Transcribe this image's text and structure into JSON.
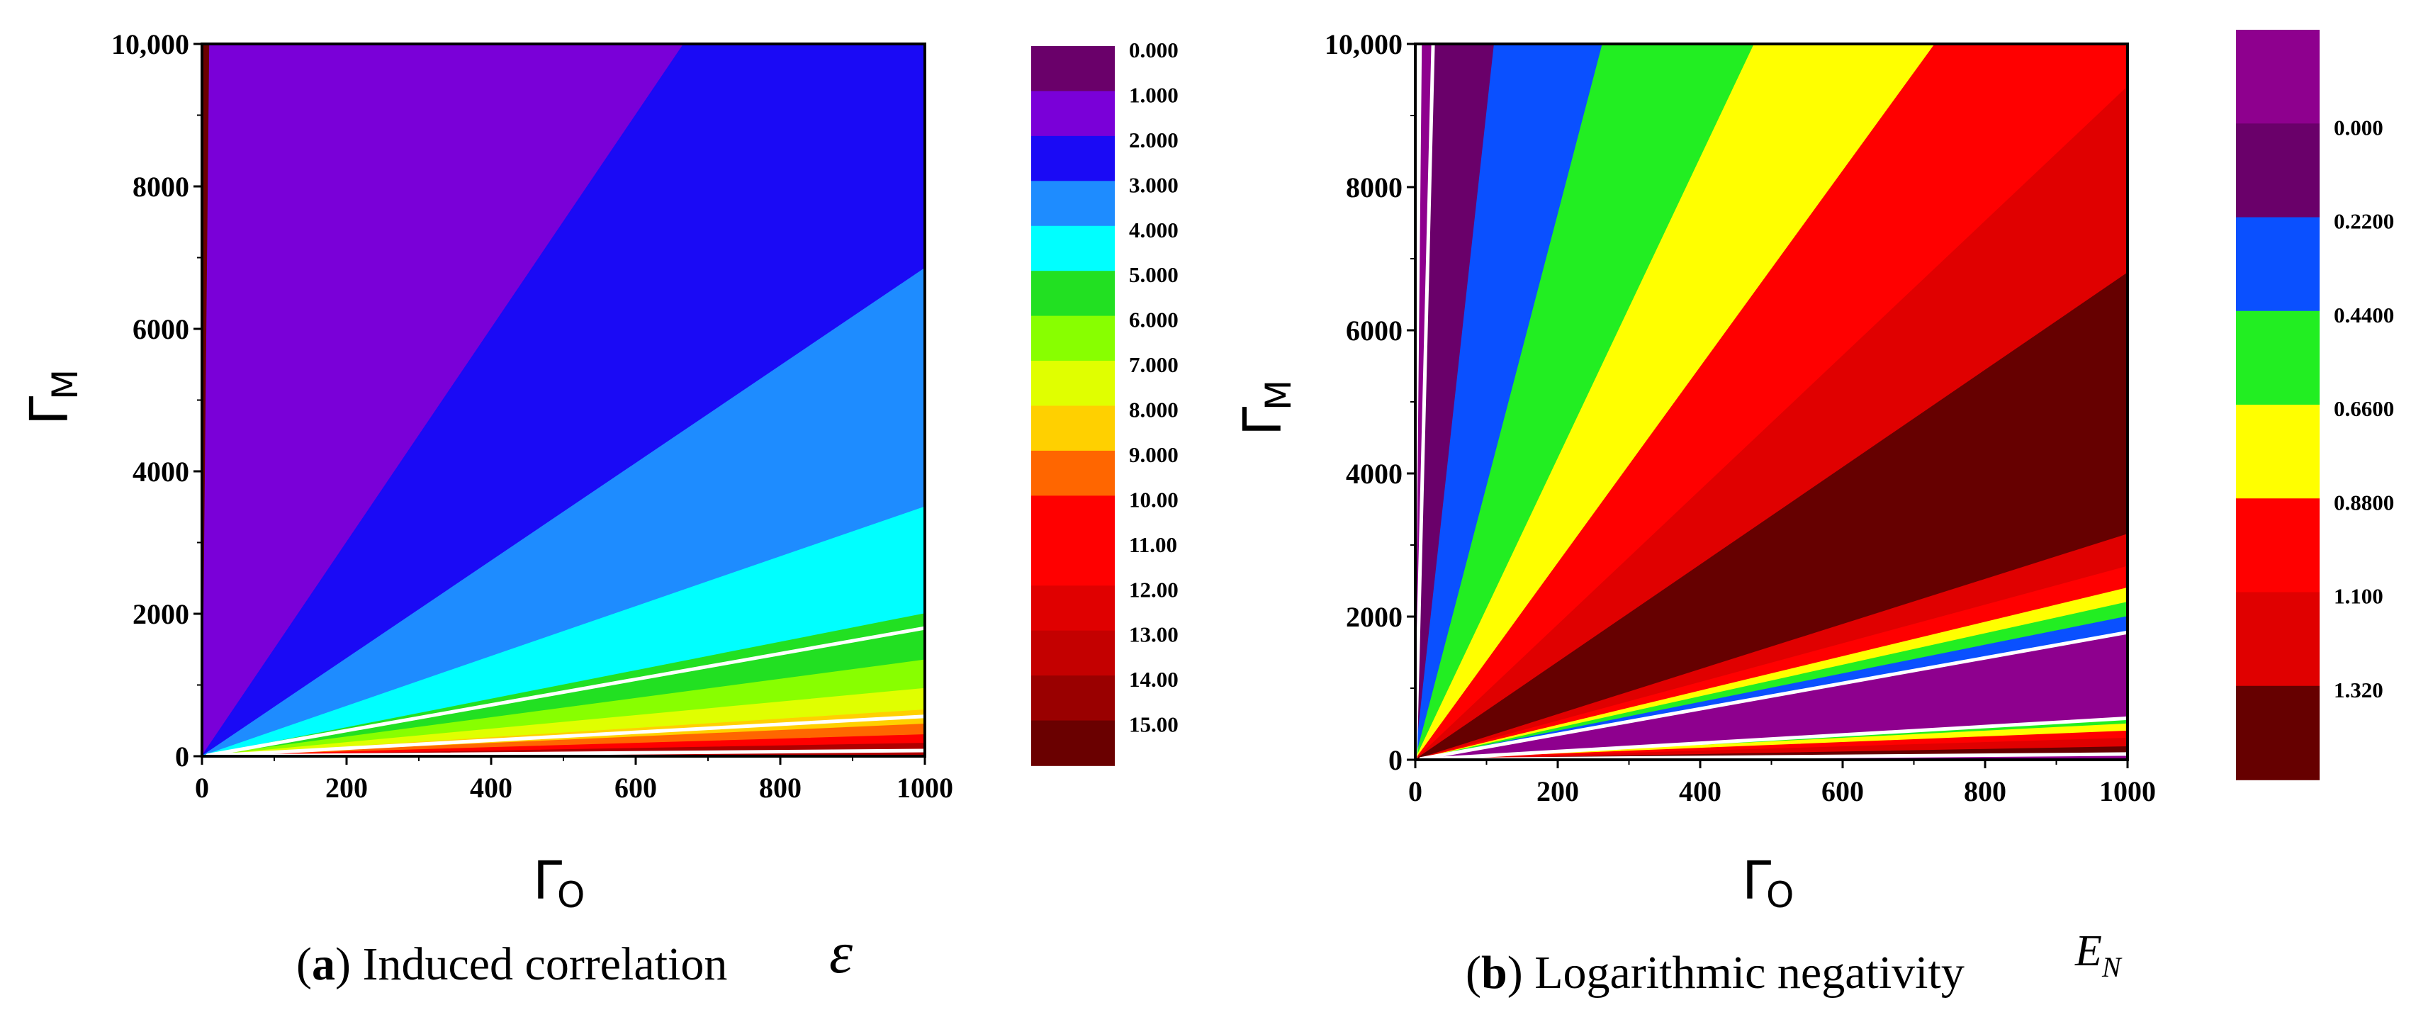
{
  "chart_data": [
    {
      "id": "a",
      "type": "heatmap",
      "subtype": "filled-contour",
      "caption_label": "a",
      "caption_text": "Induced correlation",
      "symbol": "ε",
      "xlabel": "Γ",
      "xlabel_sub": "O",
      "ylabel": "Γ",
      "ylabel_sub": "M",
      "xlim": [
        0,
        1000
      ],
      "ylim": [
        0,
        10000
      ],
      "x_ticks": [
        "0",
        "200",
        "400",
        "600",
        "800",
        "1000"
      ],
      "y_ticks": [
        "0",
        "2000",
        "4000",
        "6000",
        "8000",
        "10,000"
      ],
      "x_tick_values": [
        0,
        200,
        400,
        600,
        800,
        1000
      ],
      "y_tick_values": [
        0,
        2000,
        4000,
        6000,
        8000,
        10000
      ],
      "contour_ratio_boundaries": [
        1.8,
        0.56,
        0.08
      ],
      "contour_ratio_fill_order": [
        "#6a006a",
        "#7a00d8",
        "#6a006a"
      ],
      "wedges": [
        {
          "ratio_at_top": 1000,
          "ratio_next": 15.0,
          "color": "#7a00d8"
        },
        {
          "ratio_at_top": 15.0,
          "ratio_next": 6.85,
          "color": "#1a0af5"
        },
        {
          "ratio_at_top": 6.85,
          "ratio_next": 3.5,
          "color": "#1e8cff"
        },
        {
          "ratio_at_top": 3.5,
          "ratio_next": 2.0,
          "color": "#00ffff"
        },
        {
          "ratio_at_top": 2.0,
          "ratio_next": 1.35,
          "color": "#22e022"
        },
        {
          "ratio_at_top": 1.35,
          "ratio_next": 0.95,
          "color": "#88ff00"
        },
        {
          "ratio_at_top": 0.95,
          "ratio_next": 0.65,
          "color": "#e0ff00"
        },
        {
          "ratio_at_top": 0.65,
          "ratio_next": 0.45,
          "color": "#ffd000"
        },
        {
          "ratio_at_top": 0.45,
          "ratio_next": 0.3,
          "color": "#ff6600"
        },
        {
          "ratio_at_top": 0.3,
          "ratio_next": 0.18,
          "color": "#ff0000"
        },
        {
          "ratio_at_top": 0.18,
          "ratio_next": 0.0,
          "color": "#b00000"
        }
      ],
      "white_lines": [
        1.8,
        0.56,
        0.08
      ],
      "colorbar": {
        "labels": [
          "0.000",
          "1.000",
          "2.000",
          "3.000",
          "4.000",
          "5.000",
          "6.000",
          "7.000",
          "8.000",
          "9.000",
          "10.00",
          "11.00",
          "12.00",
          "13.00",
          "14.00",
          "15.00"
        ],
        "colors": [
          "#6a006a",
          "#7a00d8",
          "#1a0af5",
          "#1e8cff",
          "#00ffff",
          "#22e022",
          "#88ff00",
          "#e0ff00",
          "#ffd000",
          "#ff6600",
          "#ff0000",
          "#ff0000",
          "#e00000",
          "#c40000",
          "#9a0000",
          "#6a0000"
        ]
      }
    },
    {
      "id": "b",
      "type": "heatmap",
      "subtype": "filled-contour",
      "caption_label": "b",
      "caption_text": "Logarithmic negativity",
      "symbol": "E",
      "symbol_sub": "N",
      "xlabel": "Γ",
      "xlabel_sub": "O",
      "ylabel": "Γ",
      "ylabel_sub": "M",
      "xlim": [
        0,
        1000
      ],
      "ylim": [
        0,
        10000
      ],
      "x_ticks": [
        "0",
        "200",
        "400",
        "600",
        "800",
        "1000"
      ],
      "y_ticks": [
        "0",
        "2000",
        "4000",
        "6000",
        "8000",
        "10,000"
      ],
      "x_tick_values": [
        0,
        200,
        400,
        600,
        800,
        1000
      ],
      "y_tick_values": [
        0,
        2000,
        4000,
        6000,
        8000,
        10000
      ],
      "wedges": [
        {
          "ratio_at_top": 1000,
          "ratio_next": 400,
          "color": "#8e008e"
        },
        {
          "ratio_at_top": 400,
          "ratio_next": 90,
          "color": "#6a006a"
        },
        {
          "ratio_at_top": 90,
          "ratio_next": 38,
          "color": "#0a50ff"
        },
        {
          "ratio_at_top": 38,
          "ratio_next": 21,
          "color": "#22ee22"
        },
        {
          "ratio_at_top": 21,
          "ratio_next": 13.7,
          "color": "#ffff00"
        },
        {
          "ratio_at_top": 13.7,
          "ratio_next": 9.4,
          "color": "#ff0000"
        },
        {
          "ratio_at_top": 9.4,
          "ratio_next": 6.8,
          "color": "#e00000"
        },
        {
          "ratio_at_top": 6.8,
          "ratio_next": 3.15,
          "color": "#660000"
        },
        {
          "ratio_at_top": 3.15,
          "ratio_next": 2.7,
          "color": "#e00000"
        },
        {
          "ratio_at_top": 2.7,
          "ratio_next": 2.4,
          "color": "#ff0000"
        },
        {
          "ratio_at_top": 2.4,
          "ratio_next": 2.2,
          "color": "#ffff00"
        },
        {
          "ratio_at_top": 2.2,
          "ratio_next": 2.0,
          "color": "#22ee22"
        },
        {
          "ratio_at_top": 2.0,
          "ratio_next": 1.78,
          "color": "#0a50ff"
        },
        {
          "ratio_at_top": 1.78,
          "ratio_next": 0.58,
          "color": "#8e008e"
        },
        {
          "ratio_at_top": 0.58,
          "ratio_next": 0.5,
          "color": "#22ee22"
        },
        {
          "ratio_at_top": 0.5,
          "ratio_next": 0.4,
          "color": "#ffff00"
        },
        {
          "ratio_at_top": 0.4,
          "ratio_next": 0.3,
          "color": "#ff0000"
        },
        {
          "ratio_at_top": 0.3,
          "ratio_next": 0.18,
          "color": "#e00000"
        },
        {
          "ratio_at_top": 0.18,
          "ratio_next": 0.08,
          "color": "#660000"
        },
        {
          "ratio_at_top": 0.08,
          "ratio_next": 0.0,
          "color": "#8e008e"
        }
      ],
      "white_lines": [
        400,
        1.78,
        0.58,
        0.08
      ],
      "colorbar": {
        "labels": [
          "",
          "0.000",
          "0.2200",
          "0.4400",
          "0.6600",
          "0.8800",
          "1.100",
          "1.320"
        ],
        "colors": [
          "#8e008e",
          "#6a006a",
          "#0a50ff",
          "#22ee22",
          "#ffff00",
          "#ff0000",
          "#e00000",
          "#660000"
        ]
      }
    }
  ]
}
